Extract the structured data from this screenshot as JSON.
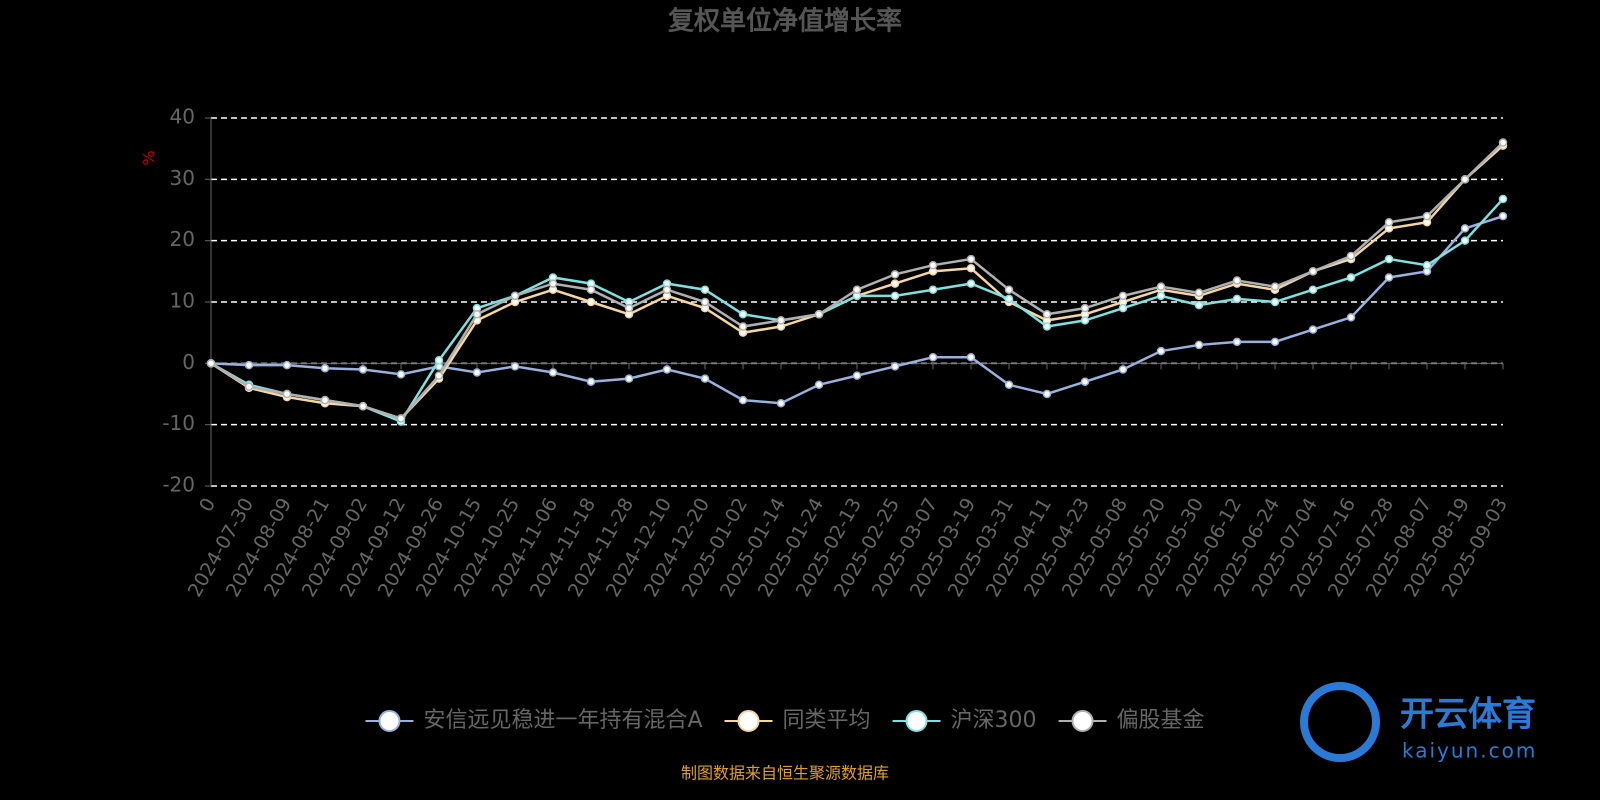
{
  "chart_data": {
    "type": "line",
    "title": "复权单位净值增长率",
    "y_label": "%",
    "source": "制图数据来自恒生聚源数据库",
    "watermark": {
      "name": "开云体育",
      "site": "kaiyun.com"
    },
    "categories": [
      "0",
      "2024-07-30",
      "2024-08-09",
      "2024-08-21",
      "2024-09-02",
      "2024-09-12",
      "2024-09-26",
      "2024-10-15",
      "2024-10-25",
      "2024-11-06",
      "2024-11-18",
      "2024-11-28",
      "2024-12-10",
      "2024-12-20",
      "2025-01-02",
      "2025-01-14",
      "2025-01-24",
      "2025-02-13",
      "2025-02-25",
      "2025-03-07",
      "2025-03-19",
      "2025-03-31",
      "2025-04-11",
      "2025-04-23",
      "2025-05-08",
      "2025-05-20",
      "2025-05-30",
      "2025-06-12",
      "2025-06-24",
      "2025-07-04",
      "2025-07-16",
      "2025-07-28",
      "2025-08-07",
      "2025-08-19",
      "2025-09-03"
    ],
    "ylim": [
      -20,
      40
    ],
    "yticks": [
      -20,
      -10,
      0,
      10,
      20,
      30,
      40
    ],
    "grid": true,
    "series": [
      {
        "name": "安信远见稳进一年持有混合A",
        "color": "#9ab0dd",
        "values": [
          0,
          -0.3,
          -0.3,
          -0.8,
          -1,
          -1.8,
          -0.5,
          -1.5,
          -0.5,
          -1.5,
          -3,
          -2.5,
          -1,
          -2.5,
          -6,
          -6.5,
          -3.5,
          -2,
          -0.5,
          1,
          1,
          -3.5,
          -5,
          -3,
          -1,
          2,
          3,
          3.5,
          3.5,
          5.5,
          7.5,
          14,
          15,
          22,
          24
        ]
      },
      {
        "name": "同类平均",
        "color": "#f5d6a0",
        "values": [
          0,
          -4,
          -5.5,
          -6.5,
          -7,
          -9,
          -2.5,
          7,
          10,
          12,
          10,
          8,
          11,
          9,
          5,
          6,
          8,
          11,
          13,
          15,
          15.5,
          10,
          7,
          8,
          10,
          12,
          11,
          13,
          12,
          15,
          17,
          22,
          23,
          30,
          35.5
        ]
      },
      {
        "name": "沪深300",
        "color": "#7fe0e0",
        "values": [
          0,
          -3.5,
          -5,
          -6,
          -7,
          -9.5,
          0.5,
          9,
          11,
          14,
          13,
          10,
          13,
          12,
          8,
          7,
          8,
          11,
          11,
          12,
          13,
          10.5,
          6,
          7,
          9,
          11,
          9.5,
          10.5,
          10,
          12,
          14,
          17,
          16,
          20,
          26.8
        ]
      },
      {
        "name": "偏股基金",
        "color": "#b0b0b0",
        "values": [
          0,
          -3.8,
          -5,
          -6,
          -7,
          -9,
          -2,
          8,
          11,
          13,
          12,
          9,
          12,
          10,
          6,
          7,
          8,
          12,
          14.5,
          16,
          17,
          12,
          8,
          9,
          11,
          12.5,
          11.5,
          13.5,
          12.5,
          15,
          17.5,
          23,
          24,
          30,
          36
        ]
      }
    ]
  }
}
